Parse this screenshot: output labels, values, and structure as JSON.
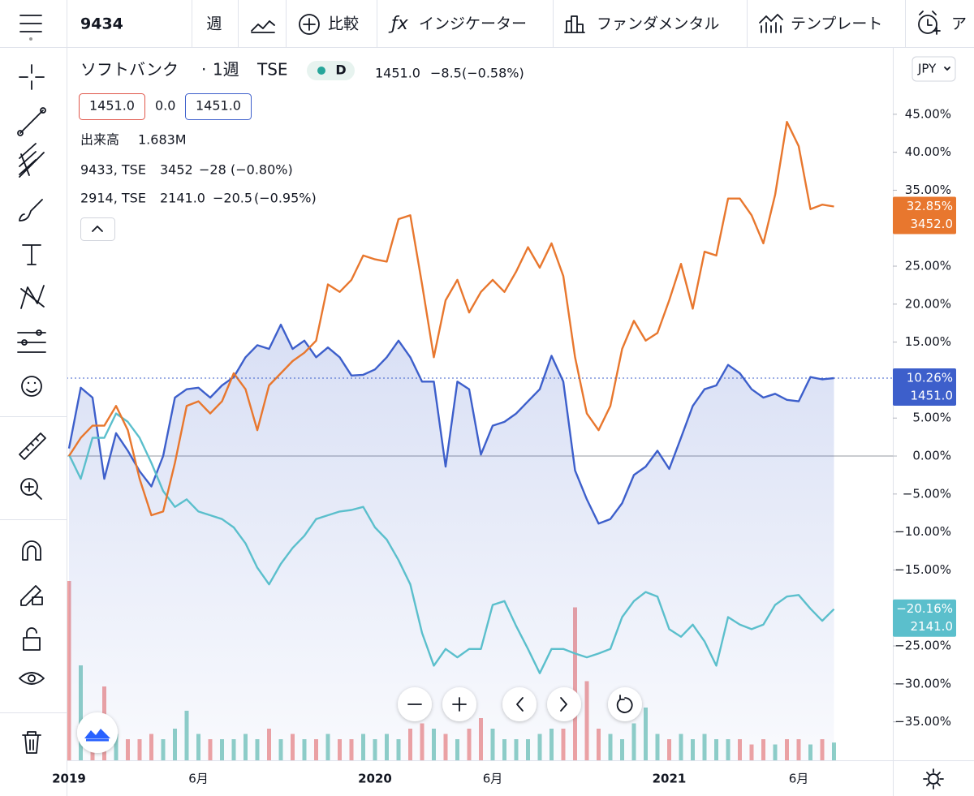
{
  "toolbar": {
    "symbol": "9434",
    "interval": "週",
    "compare": "比較",
    "indicators": "インジケーター",
    "fundamentals": "ファンダメンタル",
    "templates": "テンプレート",
    "alert": "ア"
  },
  "legend": {
    "name": "ソフトバンク",
    "interval": "1週",
    "exchange": "TSE",
    "badge": "D",
    "price": "1451.0",
    "change": "−8.5",
    "change_pct": "(−0.58%)",
    "bid": "1451.0",
    "spread": "0.0",
    "ask": "1451.0",
    "volume_label": "出来高",
    "volume": "1.683M",
    "compare": [
      {
        "symbol": "9433, TSE",
        "price": "3452",
        "change": "−28",
        "change_pct": "(−0.80%)"
      },
      {
        "symbol": "2914, TSE",
        "price": "2141.0",
        "change": "−20.5",
        "change_pct": "(−0.95%)"
      }
    ]
  },
  "currency": "JPY",
  "chart_data": {
    "type": "line",
    "categories": [
      "2019",
      null,
      null,
      null,
      null,
      null,
      null,
      null,
      null,
      null,
      null,
      "6月",
      null,
      null,
      null,
      null,
      null,
      null,
      null,
      null,
      null,
      null,
      null,
      null,
      null,
      null,
      "2020",
      null,
      null,
      null,
      null,
      null,
      null,
      null,
      null,
      null,
      "6月",
      null,
      null,
      null,
      null,
      null,
      null,
      null,
      null,
      null,
      null,
      null,
      null,
      null,
      null,
      "2021",
      null,
      null,
      null,
      null,
      null,
      null,
      null,
      null,
      null,
      null,
      "6月",
      null,
      null,
      null
    ],
    "ylim": [
      -40.06,
      53.1
    ],
    "yticks": [
      {
        "value": -35,
        "label": "−35.00%"
      },
      {
        "value": -30,
        "label": "−30.00%"
      },
      {
        "value": -25,
        "label": "−25.00%"
      },
      {
        "value": -20,
        "label": "−20.00%"
      },
      {
        "value": -15,
        "label": "−15.00%"
      },
      {
        "value": -10,
        "label": "−10.00%"
      },
      {
        "value": -5,
        "label": "−5.00%"
      },
      {
        "value": 0,
        "label": "0.00%"
      },
      {
        "value": 5,
        "label": "5.00%"
      },
      {
        "value": 10,
        "label": "10.00%"
      },
      {
        "value": 15,
        "label": "15.00%"
      },
      {
        "value": 20,
        "label": "20.00%"
      },
      {
        "value": 25,
        "label": "25.00%"
      },
      {
        "value": 30,
        "label": "30.00%"
      },
      {
        "value": 35,
        "label": "35.00%"
      },
      {
        "value": 40,
        "label": "40.00%"
      },
      {
        "value": 45,
        "label": "45.00%"
      }
    ],
    "series": [
      {
        "name": "9434",
        "color": "#3d5fcb",
        "area": true,
        "end_label": "10.26%",
        "price_label": "1451.0",
        "values": [
          1,
          9,
          7.7,
          -3,
          3,
          0.7,
          -2,
          -4,
          0,
          7.7,
          8.8,
          9,
          7.7,
          9.3,
          10.4,
          13,
          14.6,
          14.1,
          17.3,
          14.1,
          15.2,
          13,
          14.3,
          13,
          10.6,
          10.7,
          11.4,
          13,
          15.2,
          13,
          9.8,
          9.8,
          -1.4,
          9.8,
          8.8,
          0.2,
          4,
          4.5,
          5.6,
          7.2,
          8.8,
          13.2,
          9.8,
          -1.9,
          -5.7,
          -8.9,
          -8.3,
          -6.2,
          -2.5,
          -1.4,
          0.7,
          -1.7,
          2.4,
          6.6,
          8.8,
          9.3,
          12,
          10.9,
          8.8,
          7.7,
          8.2,
          7.4,
          7.2,
          10.4,
          10.1,
          10.26
        ]
      },
      {
        "name": "9433, TSE",
        "color": "#e8772e",
        "end_label": "32.85%",
        "price_label": "3452.0",
        "values": [
          0,
          2.4,
          4,
          4,
          6.6,
          3.4,
          -3,
          -7.8,
          -7.3,
          -0.9,
          6.6,
          7.2,
          5.6,
          7.2,
          10.9,
          8.8,
          3.4,
          9.3,
          10.9,
          12.5,
          13.6,
          15.2,
          22.6,
          21.6,
          23.2,
          26.4,
          25.9,
          25.6,
          31.2,
          31.7,
          22.6,
          13,
          20.5,
          23.2,
          18.9,
          21.6,
          23.2,
          21.6,
          24.3,
          27.5,
          24.8,
          28,
          23.7,
          13,
          5.6,
          3.4,
          6.6,
          14.1,
          17.8,
          15.2,
          16.2,
          20.5,
          25.3,
          19.4,
          26.9,
          26.4,
          33.9,
          33.9,
          31.7,
          28,
          34.4,
          44,
          40.8,
          32.5,
          33.1,
          32.85
        ]
      },
      {
        "name": "2914, TSE",
        "color": "#5bbfcc",
        "end_label": "−20.16%",
        "price_label": "2141.0",
        "values": [
          0.2,
          -3,
          2.4,
          2.4,
          5.6,
          4.5,
          2.4,
          -0.9,
          -4.6,
          -6.7,
          -5.7,
          -7.3,
          -7.8,
          -8.3,
          -9.4,
          -11.5,
          -14.7,
          -16.9,
          -14.2,
          -12.1,
          -10.5,
          -8.3,
          -7.8,
          -7.3,
          -7.1,
          -6.7,
          -9.4,
          -11,
          -13.7,
          -16.9,
          -23.3,
          -27.6,
          -25.4,
          -26.5,
          -25.4,
          -25.4,
          -19.6,
          -19.1,
          -22.4,
          -25.4,
          -28.6,
          -25.4,
          -25.4,
          -26,
          -26.5,
          -26,
          -25.4,
          -21.2,
          -19.1,
          -17.9,
          -18.5,
          -22.8,
          -23.8,
          -22.2,
          -24.4,
          -27.6,
          -21.2,
          -22.2,
          -22.8,
          -22.2,
          -19.6,
          -18.5,
          -18.3,
          -20.1,
          -21.7,
          -20.16
        ]
      }
    ],
    "volume": {
      "up_color": "#8fd0c8",
      "down_color": "#f0a3a3",
      "values": [
        17,
        9,
        3,
        7,
        2.5,
        2,
        2,
        2.5,
        2,
        3,
        4.7,
        2.5,
        2,
        2,
        2,
        2.5,
        2,
        3,
        2,
        2.5,
        2,
        2,
        2.5,
        2,
        2,
        2.5,
        2,
        2.5,
        2,
        3,
        3.5,
        3,
        2.5,
        2,
        3,
        4,
        3,
        2,
        2,
        2,
        2.5,
        3,
        3,
        14.5,
        7.5,
        3,
        2.5,
        2,
        3.5,
        5,
        2.5,
        2,
        2.5,
        2,
        2.5,
        2,
        2,
        2,
        1.5,
        2,
        1.5,
        2,
        2,
        1.5,
        2,
        1.683
      ]
    }
  }
}
